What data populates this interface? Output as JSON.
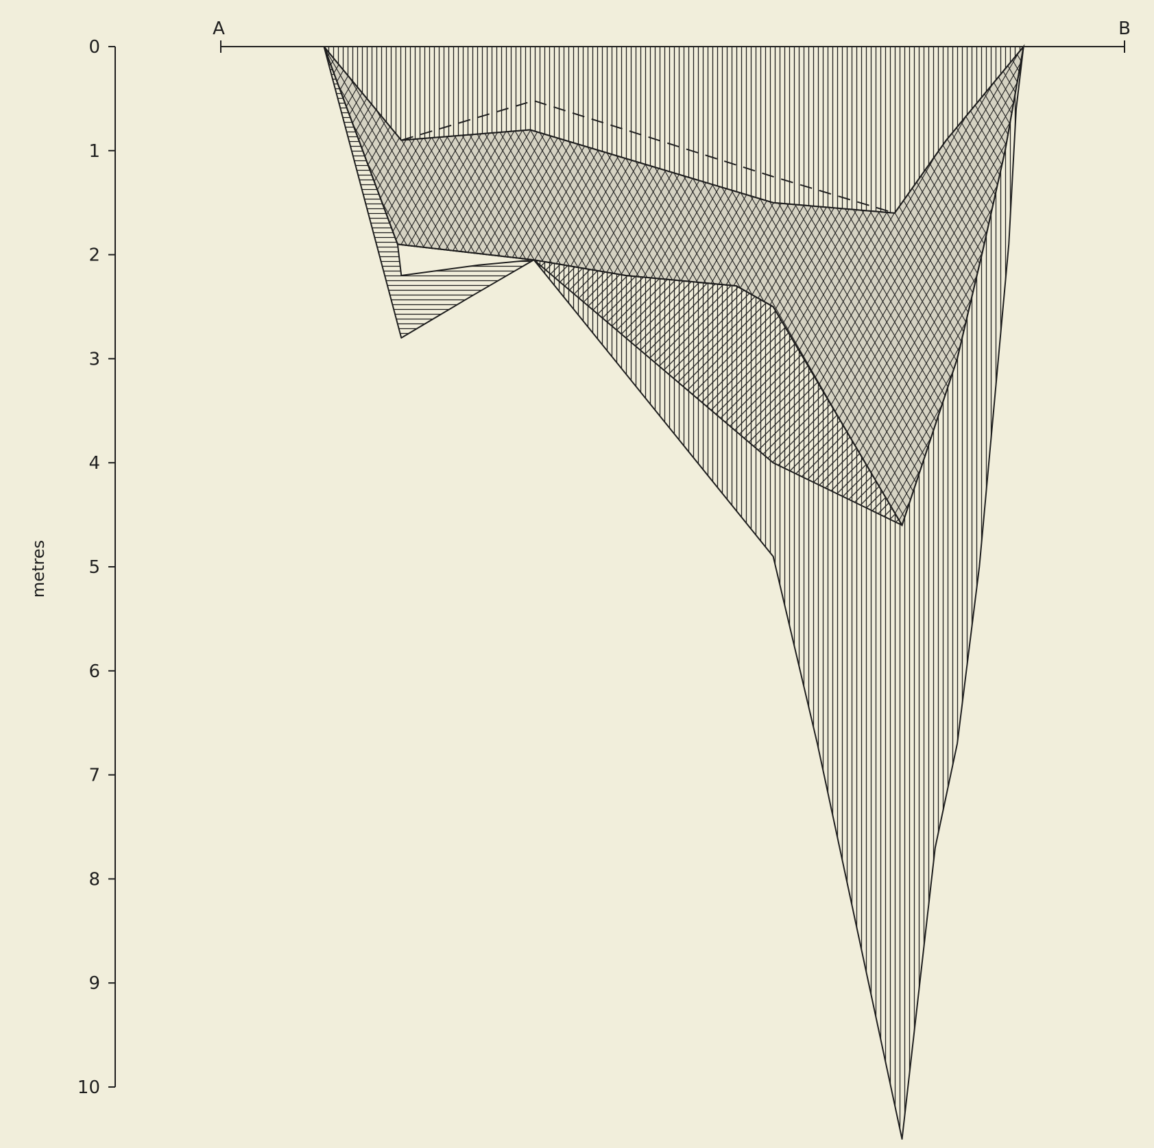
{
  "axis": {
    "label": "metres",
    "ticks": [
      0,
      1,
      2,
      3,
      4,
      5,
      6,
      7,
      8,
      9,
      10
    ],
    "range": [
      0,
      10
    ]
  },
  "section": {
    "start_label": "A",
    "end_label": "B"
  },
  "colors": {
    "background": "#f1eedb",
    "ink": "#1e1e1e"
  },
  "layers": [
    {
      "pattern": "vertical-hatch",
      "outline": [
        [
          440,
          0
        ],
        [
          540,
          1.9
        ],
        [
          725,
          2.05
        ],
        [
          1050,
          4.9
        ],
        [
          1110,
          6.7
        ],
        [
          1225,
          10.5
        ],
        [
          1270,
          7.7
        ],
        [
          1300,
          6.7
        ],
        [
          1330,
          5.0
        ],
        [
          1370,
          1.9
        ],
        [
          1380,
          0.6
        ],
        [
          1390,
          0
        ]
      ]
    },
    {
      "pattern": "horizontal-hatch",
      "outline": [
        [
          440,
          0
        ],
        [
          545,
          2.8
        ],
        [
          640,
          2.4
        ],
        [
          725,
          2.05
        ],
        [
          650,
          2.1
        ],
        [
          545,
          2.2
        ],
        [
          540,
          1.9
        ]
      ]
    },
    {
      "pattern": "diagonal-hatch",
      "outline": [
        [
          725,
          2.05
        ],
        [
          1050,
          4.0
        ],
        [
          1225,
          4.6
        ],
        [
          1050,
          2.5
        ],
        [
          1000,
          2.3
        ],
        [
          850,
          2.2
        ]
      ]
    },
    {
      "pattern": "cross-hatch",
      "outline": [
        [
          440,
          0
        ],
        [
          545,
          0.9
        ],
        [
          720,
          0.8
        ],
        [
          1050,
          1.5
        ],
        [
          1215,
          1.6
        ],
        [
          1285,
          0.9
        ],
        [
          1390,
          0
        ],
        [
          1365,
          1.0
        ],
        [
          1335,
          1.95
        ],
        [
          1300,
          3.0
        ],
        [
          1225,
          4.6
        ],
        [
          1050,
          2.5
        ],
        [
          1000,
          2.3
        ],
        [
          850,
          2.2
        ],
        [
          725,
          2.05
        ],
        [
          540,
          1.9
        ]
      ]
    }
  ],
  "dashed_line": [
    [
      545,
      0.9
    ],
    [
      725,
      0.52
    ],
    [
      1050,
      1.25
    ],
    [
      1215,
      1.6
    ]
  ]
}
